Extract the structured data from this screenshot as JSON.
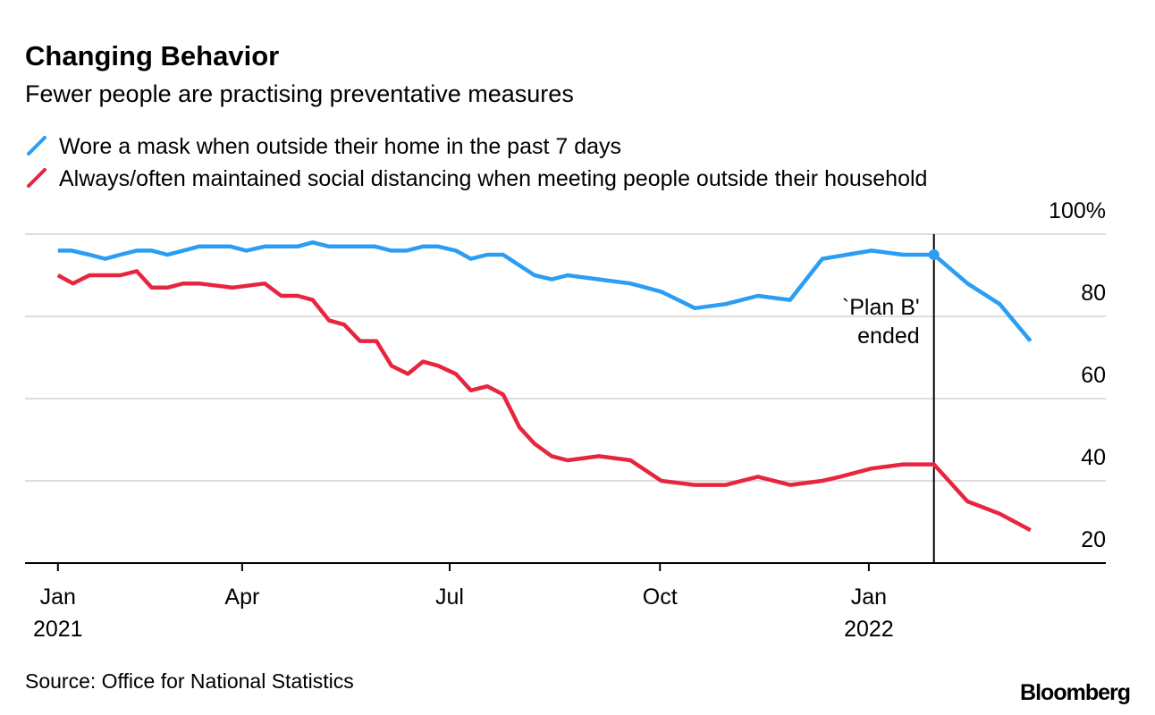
{
  "chart_data": {
    "type": "line",
    "title": "Changing Behavior",
    "subtitle": "Fewer people are practising preventative measures",
    "source": "Source: Office for National Statistics",
    "brand": "Bloomberg",
    "series": [
      {
        "name": "Wore a mask when outside their home in the past 7 days",
        "color": "#2a9df4",
        "x": [
          0,
          0.2,
          0.46,
          0.69,
          0.91,
          1.15,
          1.37,
          1.6,
          1.83,
          2.06,
          2.52,
          2.75,
          3.02,
          3.5,
          3.72,
          3.96,
          4.63,
          4.87,
          5.09,
          5.33,
          5.55,
          5.81,
          6.03,
          6.27,
          6.5,
          6.96,
          7.21,
          7.44,
          7.9,
          8.36,
          8.81,
          9.3,
          9.75,
          10.22,
          10.69,
          11.16,
          11.88,
          12.34,
          12.79,
          13.28,
          13.75,
          14.2
        ],
        "values": [
          96,
          96,
          95,
          94,
          95,
          96,
          96,
          95,
          96,
          97,
          97,
          96,
          97,
          97,
          98,
          97,
          97,
          96,
          96,
          97,
          97,
          96,
          94,
          95,
          95,
          90,
          89,
          90,
          89,
          88,
          86,
          82,
          83,
          85,
          84,
          94,
          96,
          95,
          95,
          88,
          83,
          74
        ]
      },
      {
        "name": "Always/often maintained social distancing when meeting people outside their household",
        "color": "#e8253f",
        "x": [
          0,
          0.22,
          0.46,
          0.91,
          1.15,
          1.37,
          1.6,
          1.83,
          2.06,
          2.55,
          3.02,
          3.26,
          3.5,
          3.72,
          3.96,
          4.18,
          4.41,
          4.65,
          4.87,
          5.11,
          5.33,
          5.55,
          5.81,
          6.03,
          6.27,
          6.5,
          6.74,
          6.96,
          7.21,
          7.44,
          7.9,
          8.36,
          8.81,
          9.3,
          9.75,
          10.22,
          10.69,
          11.16,
          11.42,
          11.88,
          12.34,
          12.79,
          13.28,
          13.75,
          14.2
        ],
        "values": [
          90,
          88,
          90,
          90,
          91,
          87,
          87,
          88,
          88,
          87,
          88,
          85,
          85,
          84,
          79,
          78,
          74,
          74,
          68,
          66,
          69,
          68,
          66,
          62,
          63,
          61,
          53,
          49,
          46,
          45,
          46,
          45,
          40,
          39,
          39,
          41,
          39,
          40,
          41,
          43,
          44,
          44,
          35,
          32,
          28
        ]
      }
    ],
    "xlim": [
      -0.48,
      15.3
    ],
    "xticks": [
      {
        "value": 0,
        "label": "Jan\n2021"
      },
      {
        "value": 2.69,
        "label": "Apr"
      },
      {
        "value": 5.72,
        "label": "Jul"
      },
      {
        "value": 8.79,
        "label": "Oct"
      },
      {
        "value": 11.84,
        "label": "Jan\n2022"
      }
    ],
    "ylim": [
      20,
      100
    ],
    "yticks": [
      20,
      40,
      60,
      80,
      {
        "value": 100,
        "label": "100%"
      }
    ],
    "grid": true,
    "annotation": {
      "x": 12.79,
      "lines": [
        "`Plan B'",
        "ended"
      ]
    }
  }
}
